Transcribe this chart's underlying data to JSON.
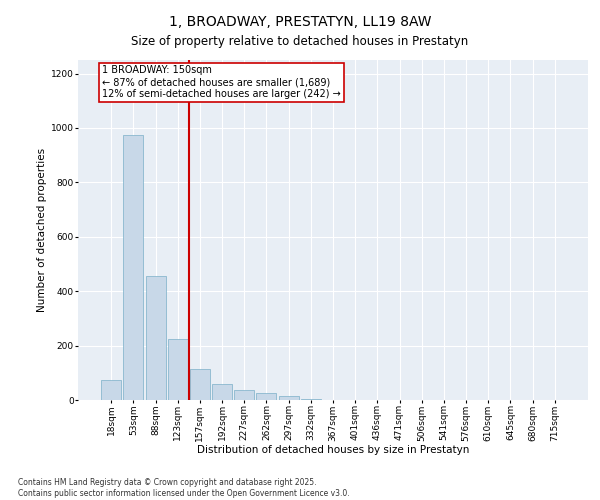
{
  "title": "1, BROADWAY, PRESTATYN, LL19 8AW",
  "subtitle": "Size of property relative to detached houses in Prestatyn",
  "xlabel": "Distribution of detached houses by size in Prestatyn",
  "ylabel": "Number of detached properties",
  "bar_color": "#c8d8e8",
  "bar_edge_color": "#7aafc8",
  "categories": [
    "18sqm",
    "53sqm",
    "88sqm",
    "123sqm",
    "157sqm",
    "192sqm",
    "227sqm",
    "262sqm",
    "297sqm",
    "332sqm",
    "367sqm",
    "401sqm",
    "436sqm",
    "471sqm",
    "506sqm",
    "541sqm",
    "576sqm",
    "610sqm",
    "645sqm",
    "680sqm",
    "715sqm"
  ],
  "values": [
    75,
    975,
    455,
    225,
    115,
    60,
    35,
    25,
    15,
    5,
    0,
    0,
    0,
    0,
    0,
    0,
    0,
    0,
    0,
    0,
    0
  ],
  "ylim": [
    0,
    1250
  ],
  "yticks": [
    0,
    200,
    400,
    600,
    800,
    1000,
    1200
  ],
  "vline_x": 3.5,
  "annotation_text": "1 BROADWAY: 150sqm\n← 87% of detached houses are smaller (1,689)\n12% of semi-detached houses are larger (242) →",
  "annotation_box_color": "#ffffff",
  "annotation_box_edge": "#cc0000",
  "vline_color": "#cc0000",
  "background_color": "#e8eef5",
  "footer": "Contains HM Land Registry data © Crown copyright and database right 2025.\nContains public sector information licensed under the Open Government Licence v3.0.",
  "title_fontsize": 10,
  "subtitle_fontsize": 8.5,
  "axis_label_fontsize": 7.5,
  "tick_fontsize": 6.5,
  "footer_fontsize": 5.5,
  "annotation_fontsize": 7
}
